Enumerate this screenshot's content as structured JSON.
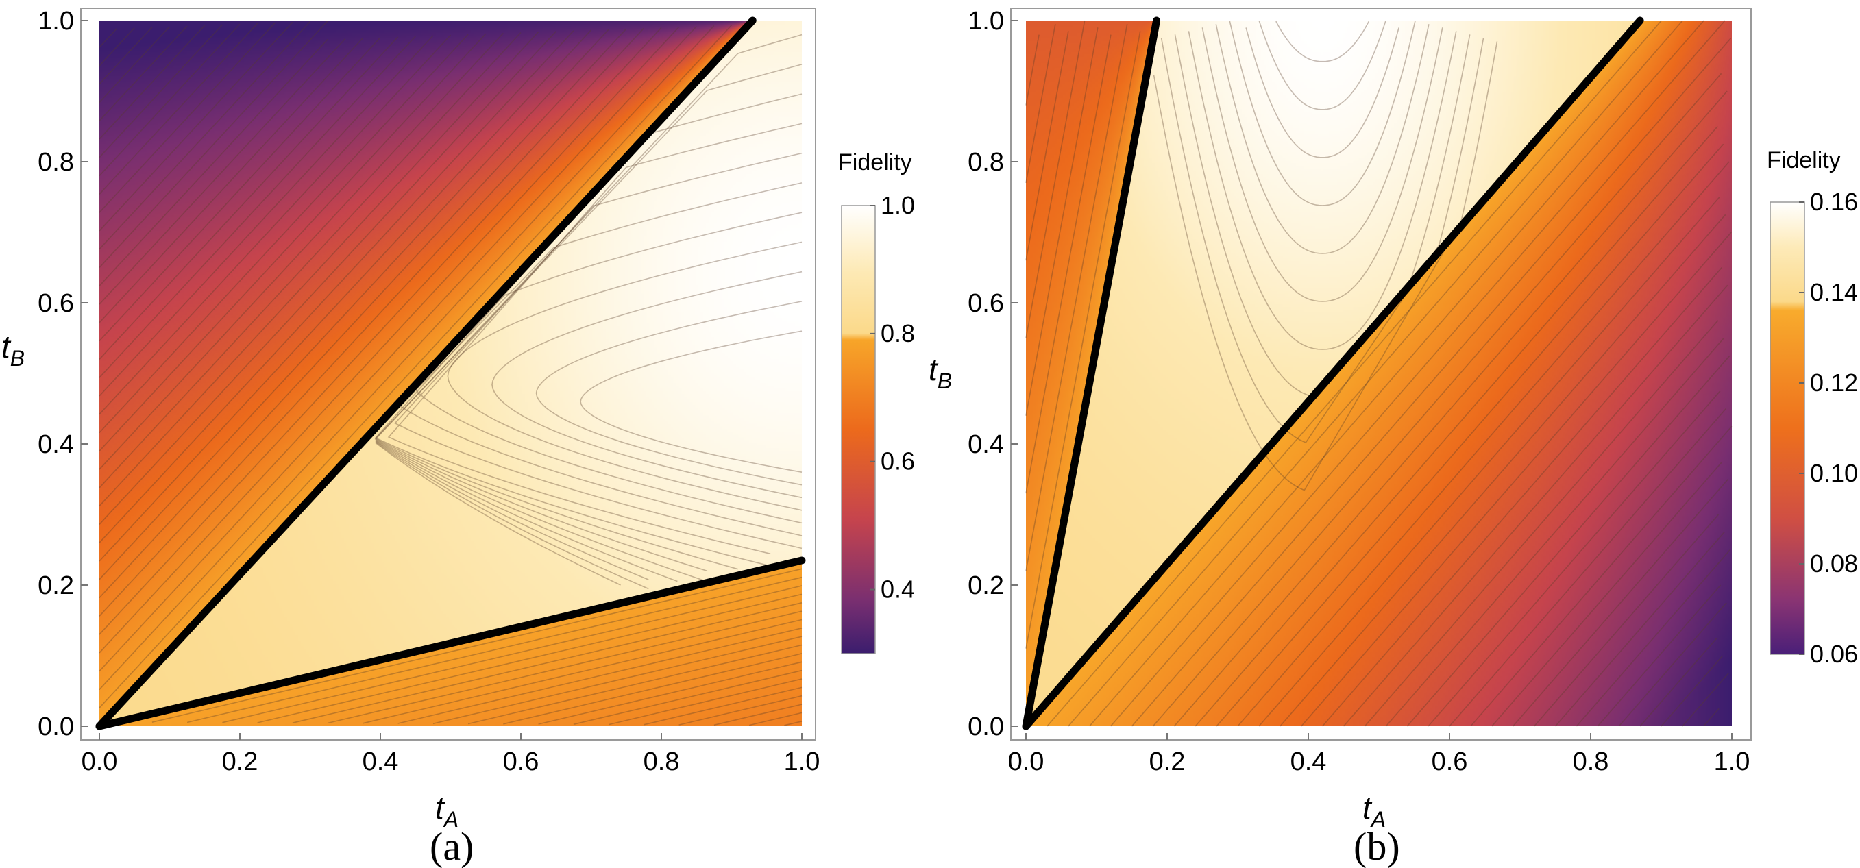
{
  "chart_data": [
    {
      "type": "heatmap",
      "panel": "(a)",
      "caption": "(a)",
      "xlabel": "t",
      "xlabel_sub": "A",
      "ylabel": "t",
      "ylabel_sub": "B",
      "xlim": [
        0,
        1
      ],
      "ylim": [
        0,
        1
      ],
      "xticks": [
        "0.0",
        "0.2",
        "0.4",
        "0.6",
        "0.8",
        "1.0"
      ],
      "yticks": [
        "0.0",
        "0.2",
        "0.4",
        "0.6",
        "0.8",
        "1.0"
      ],
      "colorbar": {
        "title": "Fidelity",
        "range": [
          0.3,
          1.0
        ],
        "ticks": [
          "0.4",
          "0.6",
          "0.8",
          "1.0"
        ],
        "tick_values": [
          0.4,
          0.6,
          0.8,
          1.0
        ],
        "highlight_above": 0.8
      },
      "boundary_lines": [
        {
          "from": [
            0,
            0
          ],
          "to": [
            0.93,
            1.0
          ]
        },
        {
          "from": [
            0,
            0
          ],
          "to": [
            1.0,
            0.235
          ]
        }
      ],
      "notes": "Fidelity maximum (~1.0) near t_A=1.0, t_B=0.65; minimum (~0.3) at t_A=0, t_B=1."
    },
    {
      "type": "heatmap",
      "panel": "(b)",
      "caption": "(b)",
      "xlabel": "t",
      "xlabel_sub": "A",
      "ylabel": "t",
      "ylabel_sub": "B",
      "xlim": [
        0,
        1
      ],
      "ylim": [
        0,
        1
      ],
      "xticks": [
        "0.0",
        "0.2",
        "0.4",
        "0.6",
        "0.8",
        "1.0"
      ],
      "yticks": [
        "0.0",
        "0.2",
        "0.4",
        "0.6",
        "0.8",
        "1.0"
      ],
      "colorbar": {
        "title": "Fidelity",
        "range": [
          0.06,
          0.16
        ],
        "ticks": [
          "0.06",
          "0.08",
          "0.10",
          "0.12",
          "0.14",
          "0.16"
        ],
        "tick_values": [
          0.06,
          0.08,
          0.1,
          0.12,
          0.14,
          0.16
        ],
        "highlight_above": 0.138
      },
      "boundary_lines": [
        {
          "from": [
            0,
            0
          ],
          "to": [
            0.185,
            1.0
          ]
        },
        {
          "from": [
            0,
            0
          ],
          "to": [
            0.87,
            1.0
          ]
        }
      ],
      "notes": "Fidelity maximum (~0.16) near t_A=0.4, t_B=1.0; minimum (~0.06) at t_A=1, t_B=0."
    }
  ]
}
